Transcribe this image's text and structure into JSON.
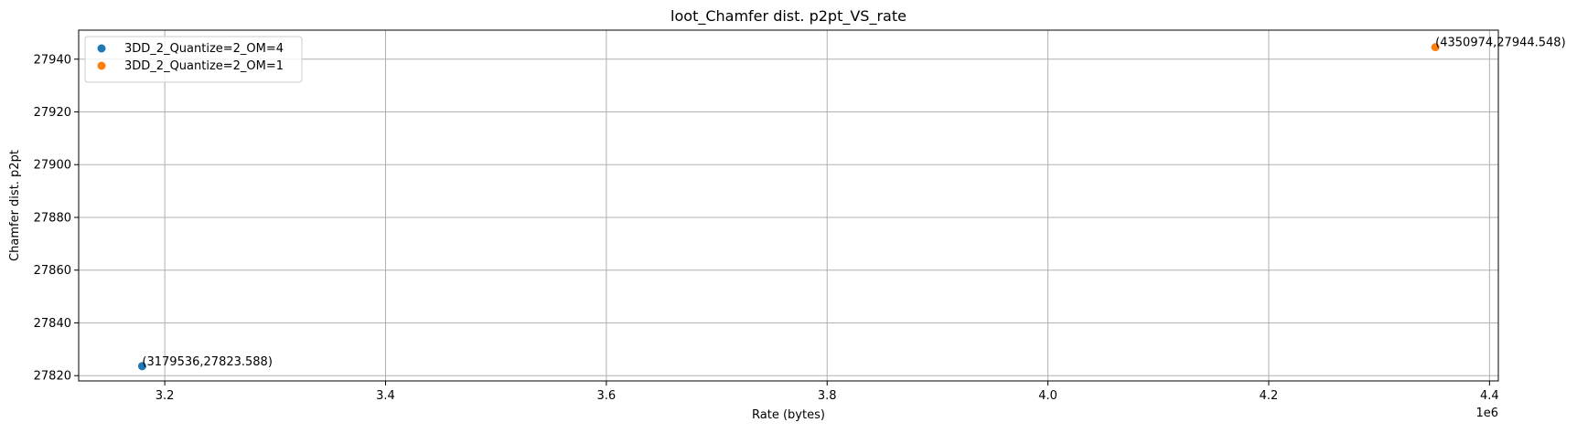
{
  "chart_data": {
    "type": "scatter",
    "title": "loot_Chamfer dist. p2pt_VS_rate",
    "xlabel": "Rate (bytes)",
    "ylabel": "Chamfer dist. p2pt",
    "x_offset_label": "1e6",
    "xlim": [
      3122000,
      4408000
    ],
    "ylim": [
      27818,
      27951
    ],
    "x_ticks": [
      3200000,
      3400000,
      3600000,
      3800000,
      4000000,
      4200000,
      4400000
    ],
    "x_tick_labels": [
      "3.2",
      "3.4",
      "3.6",
      "3.8",
      "4.0",
      "4.2",
      "4.4"
    ],
    "y_ticks": [
      27820,
      27840,
      27860,
      27880,
      27900,
      27920,
      27940
    ],
    "y_tick_labels": [
      "27820",
      "27840",
      "27860",
      "27880",
      "27900",
      "27920",
      "27940"
    ],
    "grid": true,
    "legend_position": "top-left",
    "series": [
      {
        "name": "3DD_2_Quantize=2_OM=4",
        "color": "#1f77b4",
        "points": [
          {
            "x": 3179536,
            "y": 27823.588,
            "label": "(3179536,27823.588)"
          }
        ]
      },
      {
        "name": "3DD_2_Quantize=2_OM=1",
        "color": "#ff7f0e",
        "points": [
          {
            "x": 4350974,
            "y": 27944.548,
            "label": "(4350974,27944.548)"
          }
        ]
      }
    ]
  }
}
